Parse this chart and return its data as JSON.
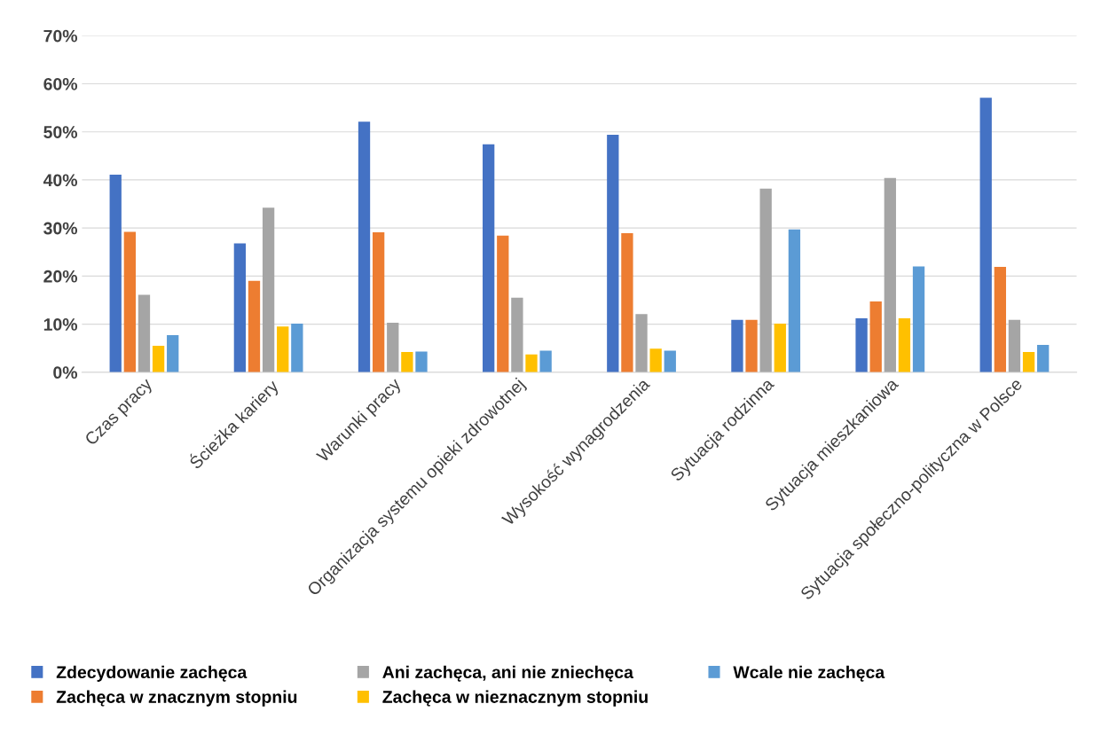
{
  "chart_data": {
    "type": "bar",
    "categories": [
      "Czas pracy",
      "Ścieżka kariery",
      "Warunki pracy",
      "Organizacja systemu opieki zdrowotnej",
      "Wysokość wynagrodzenia",
      "Sytuacja rodzinna",
      "Sytuacja mieszkaniowa",
      "Sytuacja społeczno-polityczna w Polsce"
    ],
    "series": [
      {
        "name": "Zdecydowanie zachęca",
        "color": "#4472c4",
        "values": [
          41.1,
          26.8,
          52.1,
          47.4,
          49.4,
          10.9,
          11.2,
          57.1
        ]
      },
      {
        "name": "Zachęca w znacznym stopniu",
        "color": "#ed7d31",
        "values": [
          29.2,
          19.0,
          29.1,
          28.4,
          28.9,
          10.9,
          14.7,
          21.9
        ]
      },
      {
        "name": "Ani zachęca, ani nie zniechęca",
        "color": "#a5a5a5",
        "values": [
          16.1,
          34.2,
          10.3,
          15.5,
          12.1,
          38.2,
          40.4,
          10.9
        ]
      },
      {
        "name": "Zachęca w nieznacznym stopniu",
        "color": "#ffc000",
        "values": [
          5.5,
          9.5,
          4.2,
          3.7,
          4.9,
          10.1,
          11.2,
          4.2
        ]
      },
      {
        "name": "Wcale nie zachęca",
        "color": "#5b9bd5",
        "values": [
          7.7,
          10.1,
          4.3,
          4.5,
          4.5,
          29.7,
          22.0,
          5.7
        ]
      }
    ],
    "ylim": [
      0,
      70
    ],
    "yticks": [
      {
        "value": 0,
        "label": "0%"
      },
      {
        "value": 10,
        "label": "10%"
      },
      {
        "value": 20,
        "label": "20%"
      },
      {
        "value": 30,
        "label": "30%"
      },
      {
        "value": 40,
        "label": "40%"
      },
      {
        "value": 50,
        "label": "50%"
      },
      {
        "value": 60,
        "label": "60%"
      },
      {
        "value": 70,
        "label": "70%"
      }
    ],
    "grid": "y",
    "legend": "bottom"
  }
}
